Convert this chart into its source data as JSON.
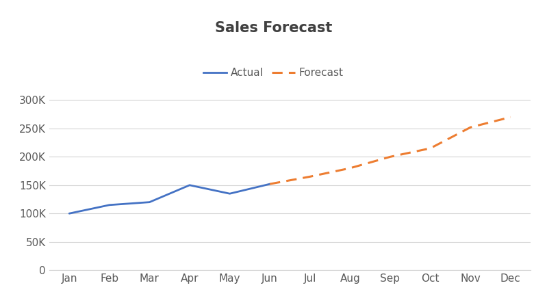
{
  "title": "Sales Forecast",
  "months": [
    "Jan",
    "Feb",
    "Mar",
    "Apr",
    "May",
    "Jun",
    "Jul",
    "Aug",
    "Sep",
    "Oct",
    "Nov",
    "Dec"
  ],
  "actual_x": [
    0,
    1,
    2,
    3,
    4,
    5
  ],
  "actual_y": [
    100000,
    115000,
    120000,
    150000,
    135000,
    152000
  ],
  "forecast_x": [
    5,
    6,
    7,
    8,
    9,
    10,
    11
  ],
  "forecast_y": [
    152000,
    165000,
    180000,
    200000,
    215000,
    252000,
    270000
  ],
  "actual_color": "#4472C4",
  "forecast_color": "#ED7D31",
  "actual_label": "Actual",
  "forecast_label": "Forecast",
  "ylim": [
    0,
    325000
  ],
  "yticks": [
    0,
    50000,
    100000,
    150000,
    200000,
    250000,
    300000
  ],
  "ytick_labels": [
    "0",
    "50K",
    "100K",
    "150K",
    "200K",
    "250K",
    "300K"
  ],
  "background_color": "#ffffff",
  "grid_color": "#d4d4d4",
  "title_color": "#404040",
  "title_fontsize": 15,
  "legend_fontsize": 11,
  "tick_label_color": "#595959",
  "tick_fontsize": 11
}
